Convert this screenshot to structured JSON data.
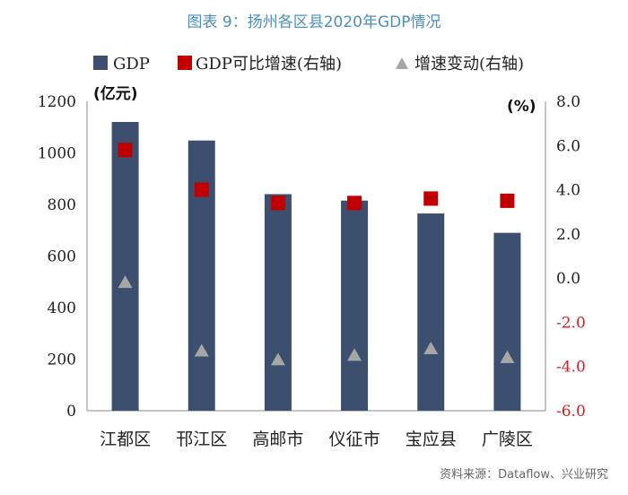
{
  "title": "图表 9：扬州各区县2020年GDP情况",
  "source": "资料来源：Dataflow、兴业研究",
  "colors": {
    "bar": "#3d4f6f",
    "square": "#c00000",
    "triangle": "#a6a6a6",
    "title": "#4a8fc0",
    "right_axis_negative": "#d81e1e"
  },
  "chart_data": {
    "type": "bar",
    "categories": [
      "江都区",
      "邗江区",
      "高邮市",
      "仪征市",
      "宝应县",
      "广陵区"
    ],
    "left_unit": "(亿元)",
    "right_unit": "(%)",
    "ylim_left": [
      0,
      1200
    ],
    "ylim_right": [
      -6.0,
      8.0
    ],
    "yticks_left": [
      "0",
      "200",
      "400",
      "600",
      "800",
      "1000",
      "1200"
    ],
    "yticks_right": [
      "-6.0",
      "-4.0",
      "-2.0",
      "0.0",
      "2.0",
      "4.0",
      "6.0",
      "8.0"
    ],
    "grid": false,
    "legend_position": "top",
    "series": [
      {
        "name": "GDP",
        "type": "bar",
        "axis": "left",
        "values": [
          1120,
          1048,
          840,
          815,
          765,
          690
        ]
      },
      {
        "name": "GDP可比增速(右轴)",
        "type": "scatter",
        "marker": "square",
        "axis": "right",
        "values": [
          5.8,
          4.0,
          3.4,
          3.4,
          3.6,
          3.5
        ]
      },
      {
        "name": "增速变动(右轴)",
        "type": "scatter",
        "marker": "triangle",
        "axis": "right",
        "values": [
          -0.2,
          -3.3,
          -3.7,
          -3.5,
          -3.2,
          -3.6
        ]
      }
    ]
  }
}
